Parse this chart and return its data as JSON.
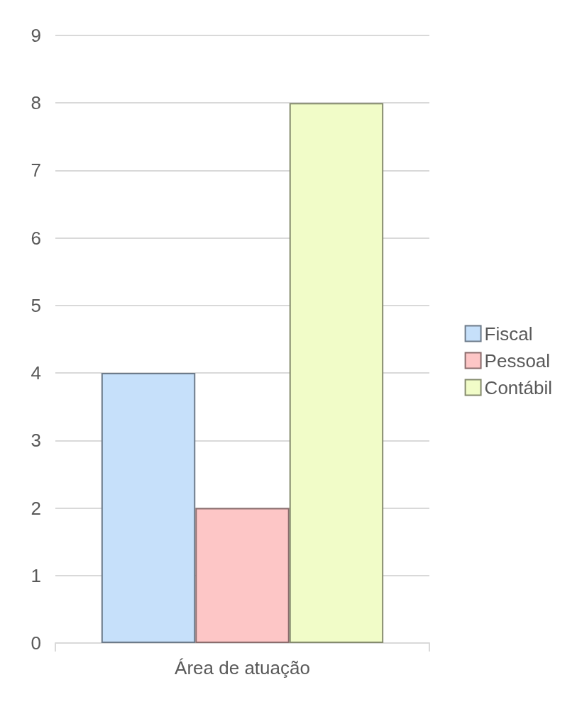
{
  "chart_data": {
    "type": "bar",
    "xlabel": "Área de atuação",
    "categories": [
      null,
      null,
      null
    ],
    "stacked": true,
    "series": [
      {
        "name": "Fiscal",
        "color": "#c6e0fa",
        "values": [
          4,
          null,
          null
        ]
      },
      {
        "name": "Pessoal",
        "color": "#fdc6c6",
        "values": [
          null,
          2,
          null
        ]
      },
      {
        "name": "Contábil",
        "color": "#f1fcc8",
        "values": [
          null,
          null,
          8
        ]
      }
    ],
    "ylim": [
      0,
      9
    ],
    "yticks": [
      0,
      1,
      2,
      3,
      4,
      5,
      6,
      7,
      8,
      9
    ],
    "grid": "y",
    "legend": "right"
  }
}
